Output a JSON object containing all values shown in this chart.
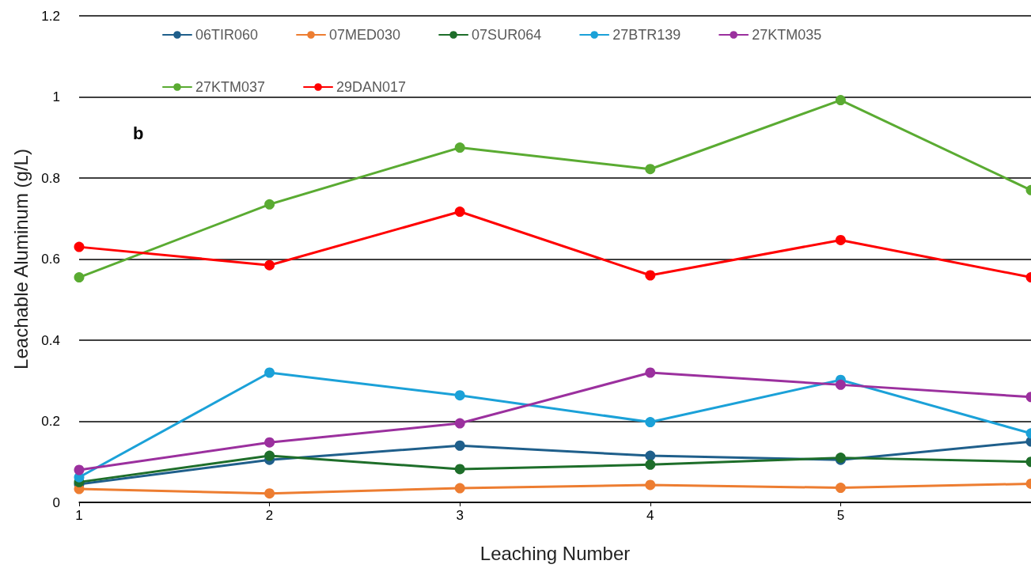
{
  "chart_data": {
    "type": "line",
    "xlabel": "Leaching Number",
    "ylabel": "Leachable Aluminum (g/L)",
    "annotations": [
      "b"
    ],
    "x": [
      1,
      2,
      3,
      4,
      5,
      6
    ],
    "xlim": [
      1,
      6
    ],
    "xticks": [
      1,
      2,
      3,
      4,
      5
    ],
    "ylim": [
      0,
      1.2
    ],
    "yticks": [
      0,
      0.2,
      0.4,
      0.6,
      0.8,
      1,
      1.2
    ],
    "grid": "y",
    "legend": "top",
    "marker": "circle",
    "line_style": "solid",
    "series": [
      {
        "name": "06TIR060",
        "color": "#1f5f8b",
        "values": [
          0.045,
          0.105,
          0.14,
          0.115,
          0.105,
          0.15
        ]
      },
      {
        "name": "07MED030",
        "color": "#ed7d31",
        "values": [
          0.033,
          0.022,
          0.035,
          0.043,
          0.036,
          0.046
        ]
      },
      {
        "name": "07SUR064",
        "color": "#1e6e2a",
        "values": [
          0.05,
          0.115,
          0.082,
          0.093,
          0.11,
          0.1
        ]
      },
      {
        "name": "27BTR139",
        "color": "#1ba1d8",
        "values": [
          0.062,
          0.32,
          0.264,
          0.198,
          0.302,
          0.17
        ]
      },
      {
        "name": "27KTM035",
        "color": "#9b309e",
        "values": [
          0.08,
          0.148,
          0.195,
          0.32,
          0.29,
          0.26
        ]
      },
      {
        "name": "27KTM037",
        "color": "#5aab32",
        "values": [
          0.555,
          0.735,
          0.875,
          0.822,
          0.992,
          0.77
        ]
      },
      {
        "name": "29DAN017",
        "color": "#ff0000",
        "values": [
          0.63,
          0.585,
          0.717,
          0.56,
          0.647,
          0.555
        ]
      }
    ]
  }
}
